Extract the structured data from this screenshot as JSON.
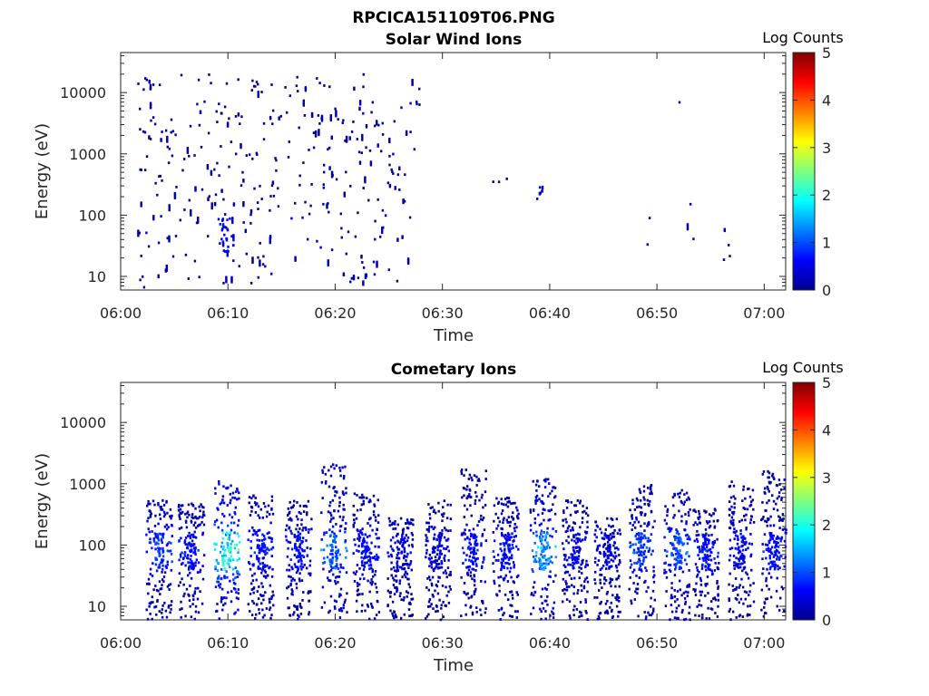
{
  "figure_title": "RPCICA151109T06.PNG",
  "chart_data": [
    {
      "type": "heatmap",
      "title": "Solar Wind Ions",
      "xlabel": "Time",
      "ylabel": "Energy (eV)",
      "yscale": "log",
      "ylim": [
        6,
        45000
      ],
      "xlim": [
        "06:00",
        "07:02"
      ],
      "x_ticks": [
        "06:00",
        "06:10",
        "06:20",
        "06:30",
        "06:40",
        "06:50",
        "07:00"
      ],
      "y_ticks": [
        "10",
        "100",
        "1000",
        "10000"
      ],
      "colorbar": {
        "label": "Log Counts",
        "range": [
          0,
          5
        ],
        "ticks": [
          "0",
          "1",
          "2",
          "3",
          "4",
          "5"
        ]
      },
      "summary": "Sparse isolated low counts (log ~0) scattered 10 eV - 20 keV between 06:02 and 06:28; few isolated counts after 06:30 near 300 eV and 20-40 eV",
      "clusters": [
        {
          "t0": 1.5,
          "t1": 28.0,
          "e0": 100,
          "e1": 20000,
          "n": 260,
          "level": 0.1
        },
        {
          "t0": 1.5,
          "t1": 27.0,
          "e0": 6,
          "e1": 100,
          "n": 90,
          "level": 0.2
        },
        {
          "t0": 9.0,
          "t1": 10.5,
          "e0": 25,
          "e1": 90,
          "n": 30,
          "level": 0.5
        },
        {
          "t0": 34.5,
          "t1": 36.0,
          "e0": 300,
          "e1": 400,
          "n": 3,
          "level": 0.2
        },
        {
          "t0": 38.5,
          "t1": 39.5,
          "e0": 170,
          "e1": 300,
          "n": 8,
          "level": 0.4
        },
        {
          "t0": 48.0,
          "t1": 58.0,
          "e0": 18,
          "e1": 160,
          "n": 9,
          "level": 0.2
        },
        {
          "t0": 51.8,
          "t1": 52.3,
          "e0": 6000,
          "e1": 8000,
          "n": 1,
          "level": 0.1
        }
      ]
    },
    {
      "type": "heatmap",
      "title": "Cometary Ions",
      "xlabel": "Time",
      "ylabel": "Energy (eV)",
      "yscale": "log",
      "ylim": [
        6,
        45000
      ],
      "xlim": [
        "06:00",
        "07:02"
      ],
      "x_ticks": [
        "06:00",
        "06:10",
        "06:20",
        "06:30",
        "06:40",
        "06:50",
        "07:00"
      ],
      "y_ticks": [
        "10",
        "100",
        "1000",
        "10000"
      ],
      "colorbar": {
        "label": "Log Counts",
        "range": [
          0,
          5
        ],
        "ticks": [
          "0",
          "1",
          "2",
          "3",
          "4",
          "5"
        ]
      },
      "summary": "Periodic vertical bursts roughly every 3 minutes from 6 eV to ~600 eV, strongest (log ~2) near 06:10 around 50-300 eV",
      "bursts": [
        {
          "t": 3.5,
          "emax": 550,
          "level": 0.8
        },
        {
          "t": 6.5,
          "emax": 500,
          "level": 0.6
        },
        {
          "t": 9.8,
          "emax": 1100,
          "level": 1.8
        },
        {
          "t": 13.0,
          "emax": 650,
          "level": 0.6
        },
        {
          "t": 16.5,
          "emax": 550,
          "level": 0.6
        },
        {
          "t": 19.8,
          "emax": 2300,
          "level": 1.0
        },
        {
          "t": 22.8,
          "emax": 700,
          "level": 0.6
        },
        {
          "t": 26.0,
          "emax": 280,
          "level": 0.4
        },
        {
          "t": 29.5,
          "emax": 550,
          "level": 0.4
        },
        {
          "t": 32.8,
          "emax": 1900,
          "level": 0.6
        },
        {
          "t": 35.8,
          "emax": 600,
          "level": 0.6
        },
        {
          "t": 39.3,
          "emax": 1200,
          "level": 1.2
        },
        {
          "t": 42.3,
          "emax": 550,
          "level": 0.5
        },
        {
          "t": 45.3,
          "emax": 280,
          "level": 0.4
        },
        {
          "t": 48.5,
          "emax": 1000,
          "level": 0.8
        },
        {
          "t": 51.8,
          "emax": 800,
          "level": 0.9
        },
        {
          "t": 54.5,
          "emax": 400,
          "level": 0.6
        },
        {
          "t": 57.8,
          "emax": 1100,
          "level": 0.5
        },
        {
          "t": 60.8,
          "emax": 1600,
          "level": 0.6
        }
      ]
    }
  ]
}
